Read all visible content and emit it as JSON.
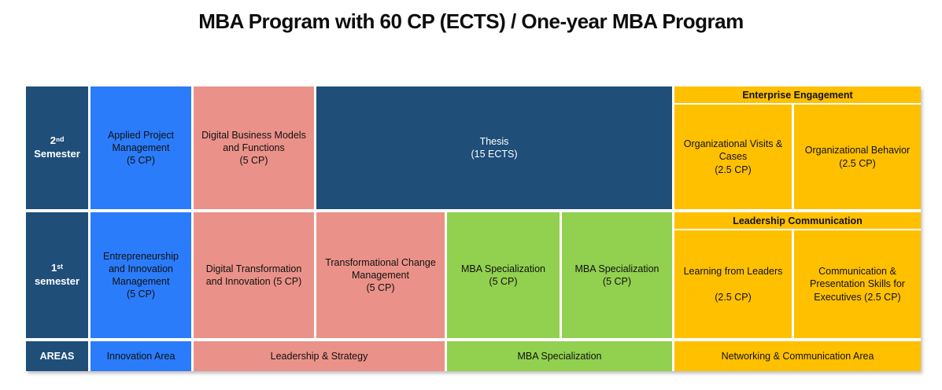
{
  "title": "MBA Program with 60 CP (ECTS) / One-year MBA Program",
  "colors": {
    "navy": "#1F4E79",
    "blue": "#2B7CFA",
    "salmon": "#EA9289",
    "green": "#92D050",
    "gold": "#FFC000"
  },
  "semesters": {
    "second": {
      "label": "2ⁿᵈ\nSemester",
      "courses": {
        "applied_project": "Applied Project Management\n(5 CP)",
        "digital_business": "Digital Business Models and Functions\n(5 CP)",
        "thesis": "Thesis\n(15 ECTS)"
      },
      "engagement": {
        "header": "Enterprise Engagement",
        "org_visits": "Organizational Visits & Cases\n(2.5 CP)",
        "org_behavior": "Organizational Behavior\n(2.5 CP)"
      }
    },
    "first": {
      "label": "1ˢᵗ\nsemester",
      "courses": {
        "entrepreneurship": "Entrepreneurship and Innovation Management\n(5 CP)",
        "digital_transformation": "Digital Transformation and Innovation (5 CP)",
        "transformational_change": "Transformational Change Management\n(5 CP)",
        "mba_spec_1": "MBA Specialization\n(5 CP)",
        "mba_spec_2": "MBA Specialization\n(5 CP)"
      },
      "communication": {
        "header": "Leadership Communication",
        "learning_leaders": "Learning from Leaders\n\n(2.5 CP)",
        "comm_skills": "Communication  &\nPresentation Skills for\nExecutives (2.5 CP)"
      }
    }
  },
  "areas": {
    "label": "AREAS",
    "innovation": "Innovation Area",
    "leadership": "Leadership & Strategy",
    "mba": "MBA Specialization",
    "networking": "Networking & Communication Area"
  }
}
